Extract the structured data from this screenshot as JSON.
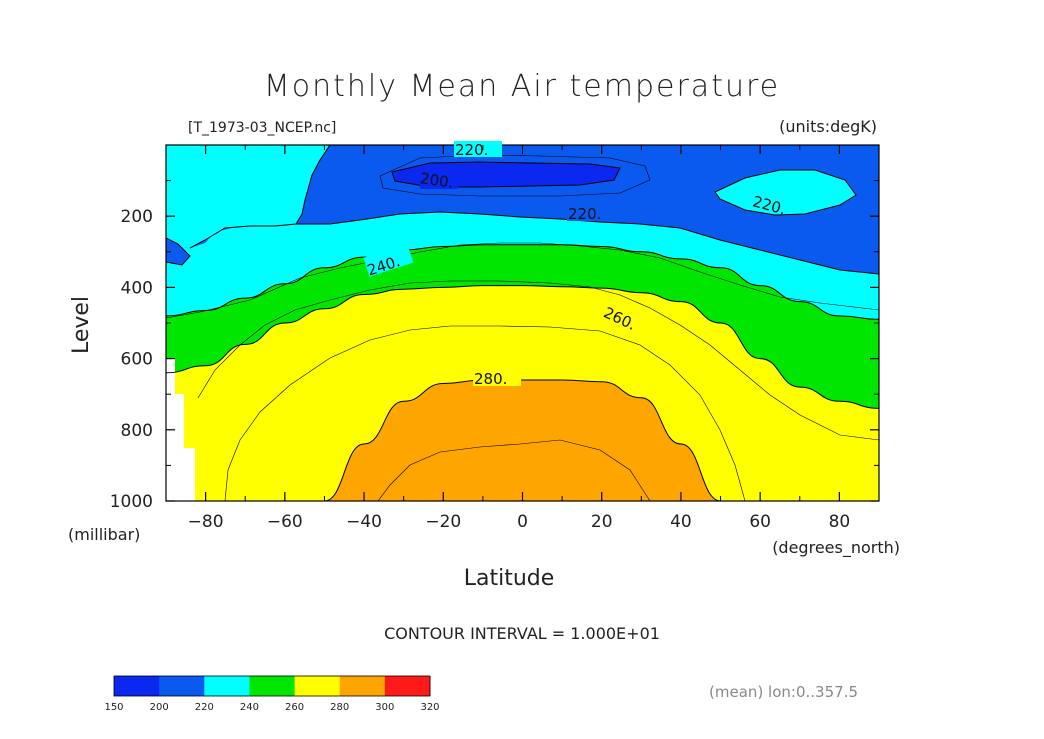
{
  "chart_data": {
    "type": "contour",
    "title": "Monthly Mean Air temperature",
    "file_label": "[T_1973-03_NCEP.nc]",
    "units_label": "(units:degK)",
    "xlabel": "Latitude",
    "x_units": "(degrees_north)",
    "ylabel": "Level",
    "y_units": "(millibar)",
    "xlim": [
      -90,
      90
    ],
    "ylim": [
      1000,
      0
    ],
    "x_ticks": [
      -80,
      -60,
      -40,
      -20,
      0,
      20,
      40,
      60,
      80
    ],
    "x_tick_labels": [
      "−80",
      "−60",
      "−40",
      "−20",
      "0",
      "20",
      "40",
      "60",
      "80"
    ],
    "y_ticks": [
      200,
      400,
      600,
      800,
      1000
    ],
    "y_tick_labels": [
      "200",
      "400",
      "600",
      "800",
      "1000"
    ],
    "contour_interval_text": "CONTOUR INTERVAL = 1.000E+01",
    "note": "(mean) lon:0..357.5",
    "contour_labels": [
      "220.",
      "200.",
      "220.",
      "220.",
      "240.",
      "260.",
      "280."
    ],
    "colorbar": {
      "levels": [
        150,
        200,
        220,
        240,
        260,
        280,
        300,
        320
      ],
      "colors": [
        "#0a28f0",
        "#0a5af0",
        "#00ffff",
        "#00e600",
        "#ffff00",
        "#ffa500",
        "#ff1a1a"
      ]
    },
    "profiles": {
      "latitudes": [
        -90,
        -80,
        -70,
        -60,
        -50,
        -40,
        -30,
        -20,
        -10,
        0,
        10,
        20,
        30,
        40,
        50,
        60,
        70,
        80,
        90
      ],
      "isotherms": [
        {
          "name": "220",
          "level_mb": [
            230,
            250,
            210,
            185,
            180,
            175,
            175,
            190,
            200,
            205,
            210,
            215,
            220,
            235,
            250,
            285,
            310,
            350,
            360
          ]
        },
        {
          "name": "240",
          "level_mb": [
            480,
            465,
            430,
            390,
            345,
            315,
            295,
            285,
            280,
            280,
            280,
            285,
            300,
            320,
            345,
            395,
            440,
            480,
            490
          ]
        },
        {
          "name": "260",
          "level_mb": [
            640,
            620,
            560,
            500,
            460,
            420,
            405,
            400,
            395,
            395,
            398,
            402,
            415,
            440,
            500,
            600,
            680,
            720,
            740
          ]
        },
        {
          "name": "280",
          "level_mb": [
            1000,
            1000,
            1000,
            1000,
            1000,
            840,
            720,
            670,
            660,
            660,
            660,
            665,
            710,
            840,
            1000,
            1000,
            1000,
            1000,
            1000
          ]
        }
      ]
    }
  }
}
